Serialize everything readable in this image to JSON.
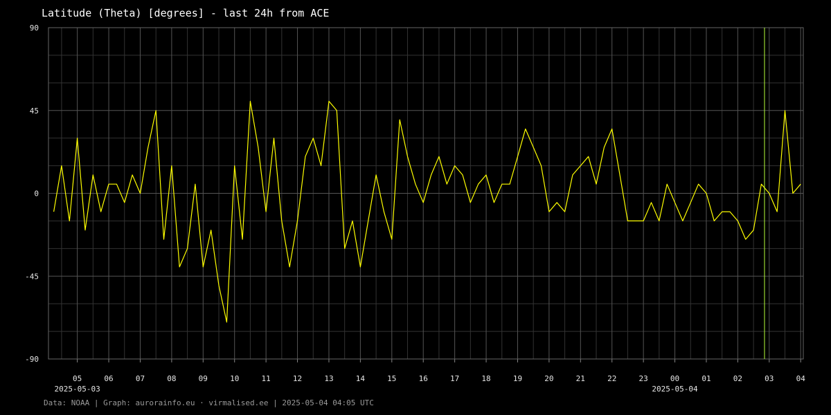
{
  "chart_data": {
    "type": "line",
    "title": "Latitude (Theta) [degrees] - last 24h from ACE",
    "footer": "Data: NOAA | Graph: aurorainfo.eu · virmalised.ee | 2025-05-04 04:05 UTC",
    "xlim": [
      "2025-05-03T04:05",
      "2025-05-04T04:05"
    ],
    "ylim": [
      -90,
      90
    ],
    "yticks": [
      -90,
      -45,
      0,
      45,
      90
    ],
    "y_minor_ticks": [
      -75,
      -60,
      -30,
      -15,
      15,
      30,
      60,
      75
    ],
    "xticks": [
      {
        "value": "2025-05-03T05:00",
        "label": "05"
      },
      {
        "value": "2025-05-03T06:00",
        "label": "06"
      },
      {
        "value": "2025-05-03T07:00",
        "label": "07"
      },
      {
        "value": "2025-05-03T08:00",
        "label": "08"
      },
      {
        "value": "2025-05-03T09:00",
        "label": "09"
      },
      {
        "value": "2025-05-03T10:00",
        "label": "10"
      },
      {
        "value": "2025-05-03T11:00",
        "label": "11"
      },
      {
        "value": "2025-05-03T12:00",
        "label": "12"
      },
      {
        "value": "2025-05-03T13:00",
        "label": "13"
      },
      {
        "value": "2025-05-03T14:00",
        "label": "14"
      },
      {
        "value": "2025-05-03T15:00",
        "label": "15"
      },
      {
        "value": "2025-05-03T16:00",
        "label": "16"
      },
      {
        "value": "2025-05-03T17:00",
        "label": "17"
      },
      {
        "value": "2025-05-03T18:00",
        "label": "18"
      },
      {
        "value": "2025-05-03T19:00",
        "label": "19"
      },
      {
        "value": "2025-05-03T20:00",
        "label": "20"
      },
      {
        "value": "2025-05-03T21:00",
        "label": "21"
      },
      {
        "value": "2025-05-03T22:00",
        "label": "22"
      },
      {
        "value": "2025-05-03T23:00",
        "label": "23"
      },
      {
        "value": "2025-05-04T00:00",
        "label": "00"
      },
      {
        "value": "2025-05-04T01:00",
        "label": "01"
      },
      {
        "value": "2025-05-04T02:00",
        "label": "02"
      },
      {
        "value": "2025-05-04T03:00",
        "label": "03"
      },
      {
        "value": "2025-05-04T04:00",
        "label": "04"
      }
    ],
    "x_minor_ticks": [
      "2025-05-03T04:30",
      "2025-05-03T05:30",
      "2025-05-03T06:30",
      "2025-05-03T07:30",
      "2025-05-03T08:30",
      "2025-05-03T09:30",
      "2025-05-03T10:30",
      "2025-05-03T11:30",
      "2025-05-03T12:30",
      "2025-05-03T13:30",
      "2025-05-03T14:30",
      "2025-05-03T15:30",
      "2025-05-03T16:30",
      "2025-05-03T17:30",
      "2025-05-03T18:30",
      "2025-05-03T19:30",
      "2025-05-03T20:30",
      "2025-05-03T21:30",
      "2025-05-03T22:30",
      "2025-05-03T23:30",
      "2025-05-04T00:30",
      "2025-05-04T01:30",
      "2025-05-04T02:30",
      "2025-05-04T03:30"
    ],
    "date_labels": [
      {
        "value": "2025-05-03T05:00",
        "label": "2025-05-03"
      },
      {
        "value": "2025-05-04T00:00",
        "label": "2025-05-04"
      }
    ],
    "marker_x": "2025-05-04T02:51",
    "marker_color": "#b5ff3a",
    "grid": true,
    "series": [
      {
        "name": "Theta",
        "color": "#ffff00",
        "x": [
          "2025-05-03T04:15",
          "2025-05-03T04:30",
          "2025-05-03T04:45",
          "2025-05-03T05:00",
          "2025-05-03T05:15",
          "2025-05-03T05:30",
          "2025-05-03T05:45",
          "2025-05-03T06:00",
          "2025-05-03T06:15",
          "2025-05-03T06:30",
          "2025-05-03T06:45",
          "2025-05-03T07:00",
          "2025-05-03T07:15",
          "2025-05-03T07:30",
          "2025-05-03T07:45",
          "2025-05-03T08:00",
          "2025-05-03T08:15",
          "2025-05-03T08:30",
          "2025-05-03T08:45",
          "2025-05-03T09:00",
          "2025-05-03T09:15",
          "2025-05-03T09:30",
          "2025-05-03T09:45",
          "2025-05-03T10:00",
          "2025-05-03T10:15",
          "2025-05-03T10:30",
          "2025-05-03T10:45",
          "2025-05-03T11:00",
          "2025-05-03T11:15",
          "2025-05-03T11:30",
          "2025-05-03T11:45",
          "2025-05-03T12:00",
          "2025-05-03T12:15",
          "2025-05-03T12:30",
          "2025-05-03T12:45",
          "2025-05-03T13:00",
          "2025-05-03T13:15",
          "2025-05-03T13:30",
          "2025-05-03T13:45",
          "2025-05-03T14:00",
          "2025-05-03T14:15",
          "2025-05-03T14:30",
          "2025-05-03T14:45",
          "2025-05-03T15:00",
          "2025-05-03T15:15",
          "2025-05-03T15:30",
          "2025-05-03T15:45",
          "2025-05-03T16:00",
          "2025-05-03T16:15",
          "2025-05-03T16:30",
          "2025-05-03T16:45",
          "2025-05-03T17:00",
          "2025-05-03T17:15",
          "2025-05-03T17:30",
          "2025-05-03T17:45",
          "2025-05-03T18:00",
          "2025-05-03T18:15",
          "2025-05-03T18:30",
          "2025-05-03T18:45",
          "2025-05-03T19:00",
          "2025-05-03T19:15",
          "2025-05-03T19:30",
          "2025-05-03T19:45",
          "2025-05-03T20:00",
          "2025-05-03T20:15",
          "2025-05-03T20:30",
          "2025-05-03T20:45",
          "2025-05-03T21:00",
          "2025-05-03T21:15",
          "2025-05-03T21:30",
          "2025-05-03T21:45",
          "2025-05-03T22:00",
          "2025-05-03T22:15",
          "2025-05-03T22:30",
          "2025-05-03T22:45",
          "2025-05-03T23:00",
          "2025-05-03T23:15",
          "2025-05-03T23:30",
          "2025-05-03T23:45",
          "2025-05-04T00:00",
          "2025-05-04T00:15",
          "2025-05-04T00:30",
          "2025-05-04T00:45",
          "2025-05-04T01:00",
          "2025-05-04T01:15",
          "2025-05-04T01:30",
          "2025-05-04T01:45",
          "2025-05-04T02:00",
          "2025-05-04T02:15",
          "2025-05-04T02:30",
          "2025-05-04T02:45",
          "2025-05-04T03:00",
          "2025-05-04T03:15",
          "2025-05-04T03:30",
          "2025-05-04T03:45",
          "2025-05-04T04:00"
        ],
        "values": [
          -10,
          15,
          -15,
          30,
          -20,
          10,
          -10,
          5,
          5,
          -5,
          10,
          0,
          25,
          45,
          -25,
          15,
          -40,
          -30,
          5,
          -40,
          -20,
          -50,
          -70,
          15,
          -25,
          50,
          25,
          -10,
          30,
          -15,
          -40,
          -15,
          20,
          30,
          15,
          50,
          45,
          -30,
          -15,
          -40,
          -15,
          10,
          -10,
          -25,
          40,
          20,
          5,
          -5,
          10,
          20,
          5,
          15,
          10,
          -5,
          5,
          10,
          -5,
          5,
          5,
          20,
          35,
          25,
          15,
          -10,
          -5,
          -10,
          10,
          15,
          20,
          5,
          25,
          35,
          10,
          -15,
          -15,
          -15,
          -5,
          -15,
          5,
          -5,
          -15,
          -5,
          5,
          0,
          -15,
          -10,
          -10,
          -15,
          -25,
          -20,
          5,
          0,
          -10,
          45,
          0,
          5
        ]
      }
    ]
  }
}
